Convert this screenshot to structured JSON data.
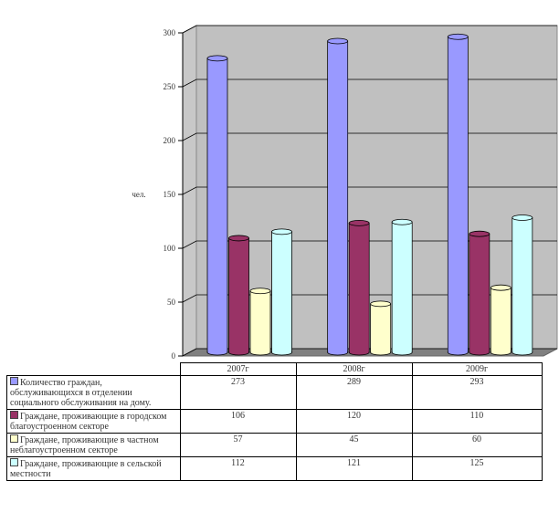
{
  "chart_data": {
    "type": "bar",
    "title": "",
    "ylabel": "чел.",
    "ylim": [
      0,
      300
    ],
    "yticks": [
      "0",
      "50",
      "100",
      "150",
      "200",
      "250",
      "300"
    ],
    "categories": [
      "2007г",
      "2008г",
      "2009г"
    ],
    "series": [
      {
        "name": "Количество граждан, обслуживающихся в отделении социального обслуживания на дому.",
        "color": "#9999ff",
        "values": [
          273,
          289,
          293
        ]
      },
      {
        "name": "Граждане, проживающие в городском благоустроенном секторе",
        "color": "#993366",
        "values": [
          106,
          120,
          110
        ]
      },
      {
        "name": "Граждане, проживающие в частном неблагоустроенном секторе",
        "color": "#ffffcc",
        "values": [
          57,
          45,
          60
        ]
      },
      {
        "name": "Граждане, проживающие в сельской местности",
        "color": "#ccffff",
        "values": [
          112,
          121,
          125
        ]
      }
    ],
    "legend": "table-bottom"
  }
}
